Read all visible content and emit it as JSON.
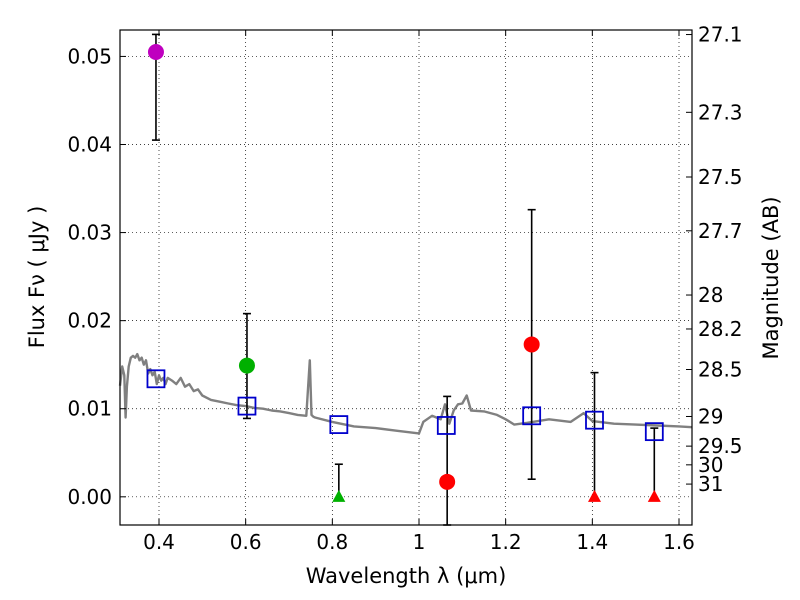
{
  "chart_data": {
    "type": "scatter",
    "title": "",
    "xlabel": "Wavelength  λ (μm)",
    "ylabel": "Flux  Fν  ( μJy )",
    "y2label": "Magnitude (AB)",
    "xlim": [
      0.31,
      1.63
    ],
    "ylim": [
      -0.0032,
      0.053
    ],
    "grid": true,
    "x_ticks": [
      0.4,
      0.6,
      0.8,
      1.0,
      1.2,
      1.4,
      1.6
    ],
    "x_tick_labels": [
      "0.4",
      "0.6",
      "0.8",
      "1",
      "1.2",
      "1.4",
      "1.6"
    ],
    "y_ticks": [
      0.0,
      0.01,
      0.02,
      0.03,
      0.04,
      0.05
    ],
    "y_tick_labels": [
      "0.00",
      "0.01",
      "0.02",
      "0.03",
      "0.04",
      "0.05"
    ],
    "mag_ticks": [
      27.1,
      27.3,
      27.5,
      27.7,
      28,
      28.2,
      28.5,
      29,
      29.5,
      30,
      31
    ],
    "mag_tick_labels": [
      "27.1",
      "27.3",
      "27.5",
      "27.7",
      "28",
      "28.2",
      "28.5",
      "29",
      "29.5",
      "30",
      "31"
    ],
    "colors": {
      "magenta": "#bf00bf",
      "green": "#00b000",
      "red": "#ff0000",
      "blue": "#0000cc",
      "model": "#808080",
      "errorbar": "#000000"
    },
    "series": [
      {
        "name": "model_spectrum",
        "kind": "line",
        "x": [
          0.31,
          0.315,
          0.32,
          0.323,
          0.326,
          0.33,
          0.335,
          0.34,
          0.345,
          0.35,
          0.355,
          0.36,
          0.365,
          0.37,
          0.375,
          0.38,
          0.385,
          0.39,
          0.395,
          0.4,
          0.405,
          0.41,
          0.415,
          0.42,
          0.43,
          0.44,
          0.45,
          0.46,
          0.47,
          0.48,
          0.49,
          0.5,
          0.52,
          0.54,
          0.56,
          0.58,
          0.6,
          0.62,
          0.64,
          0.66,
          0.68,
          0.7,
          0.72,
          0.74,
          0.748,
          0.752,
          0.756,
          0.76,
          0.8,
          0.85,
          0.9,
          0.95,
          1.0,
          1.01,
          1.03,
          1.05,
          1.06,
          1.07,
          1.08,
          1.09,
          1.1,
          1.11,
          1.12,
          1.15,
          1.18,
          1.2,
          1.22,
          1.25,
          1.3,
          1.35,
          1.38,
          1.4,
          1.45,
          1.5,
          1.55,
          1.6,
          1.63
        ],
        "y": [
          0.0126,
          0.0148,
          0.0138,
          0.009,
          0.0125,
          0.0148,
          0.0158,
          0.016,
          0.0158,
          0.0162,
          0.0155,
          0.0158,
          0.015,
          0.0155,
          0.014,
          0.0145,
          0.0138,
          0.0142,
          0.0128,
          0.0138,
          0.0132,
          0.0135,
          0.0128,
          0.0135,
          0.0132,
          0.0128,
          0.0135,
          0.0125,
          0.0128,
          0.012,
          0.0122,
          0.0115,
          0.011,
          0.0108,
          0.0106,
          0.0104,
          0.0103,
          0.0101,
          0.01,
          0.0098,
          0.0097,
          0.0095,
          0.0093,
          0.0092,
          0.0155,
          0.0093,
          0.0091,
          0.009,
          0.0085,
          0.008,
          0.0078,
          0.0075,
          0.0072,
          0.0085,
          0.0092,
          0.0088,
          0.0105,
          0.0083,
          0.0098,
          0.0105,
          0.0106,
          0.0115,
          0.0098,
          0.0097,
          0.0093,
          0.0088,
          0.0082,
          0.0084,
          0.0088,
          0.0085,
          0.0095,
          0.0086,
          0.0083,
          0.0082,
          0.0081,
          0.008,
          0.0079
        ]
      },
      {
        "name": "model_photometry",
        "kind": "square",
        "color": "#0000cc",
        "x": [
          0.393,
          0.603,
          0.815,
          1.063,
          1.26,
          1.405,
          1.543
        ],
        "y": [
          0.0134,
          0.0103,
          0.0082,
          0.0081,
          0.0092,
          0.0087,
          0.0074
        ]
      },
      {
        "name": "obs_magenta",
        "kind": "circle",
        "color": "#bf00bf",
        "x": [
          0.393
        ],
        "y": [
          0.0505
        ],
        "err_low": [
          0.0405
        ],
        "err_high": [
          0.0525
        ]
      },
      {
        "name": "obs_green",
        "kind": "circle",
        "color": "#00b000",
        "x": [
          0.603
        ],
        "y": [
          0.0149
        ],
        "err_low": [
          0.0089
        ],
        "err_high": [
          0.0208
        ]
      },
      {
        "name": "obs_red",
        "kind": "circle",
        "color": "#ff0000",
        "x": [
          1.065,
          1.26
        ],
        "y": [
          0.0017,
          0.0173
        ],
        "err_low": [
          -0.0032,
          0.002
        ],
        "err_high": [
          0.0114,
          0.0326
        ]
      },
      {
        "name": "upper_limit_green",
        "kind": "triangle",
        "color": "#00b000",
        "x": [
          0.815
        ],
        "y": [
          0.0
        ],
        "err_low": [
          0.0
        ],
        "err_high": [
          0.0037
        ]
      },
      {
        "name": "upper_limit_red",
        "kind": "triangle",
        "color": "#ff0000",
        "x": [
          1.405,
          1.543
        ],
        "y": [
          0.0,
          0.0
        ],
        "err_low": [
          0.0,
          0.0
        ],
        "err_high": [
          0.0141,
          0.0078
        ]
      }
    ]
  }
}
